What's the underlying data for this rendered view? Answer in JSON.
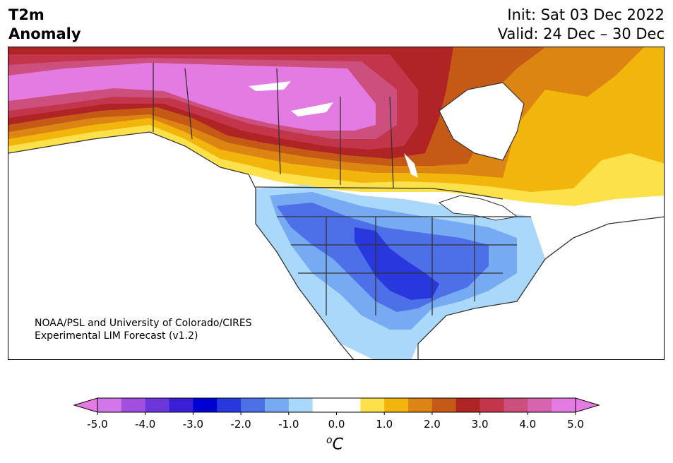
{
  "header": {
    "variable_line1": "T2m",
    "variable_line2": "Anomaly",
    "init_line": "Init: Sat 03 Dec 2022",
    "valid_line": "Valid: 24 Dec – 30 Dec"
  },
  "credit": {
    "line1": "NOAA/PSL and University of Colorado/CIRES",
    "line2": "Experimental LIM Forecast (v1.2)"
  },
  "colorbar": {
    "unit_base": "C",
    "unit_sup": "o",
    "ticks": [
      "-5.0",
      "-4.0",
      "-3.0",
      "-2.0",
      "-1.0",
      "0.0",
      "1.0",
      "2.0",
      "3.0",
      "4.0",
      "5.0"
    ],
    "under_color": "#e47be3",
    "over_color": "#e47be3",
    "colors": [
      "#d276ea",
      "#a24fe0",
      "#6b36dc",
      "#3b1fd6",
      "#0000d2",
      "#2838dc",
      "#4d70e8",
      "#76aaf2",
      "#a9d8fb",
      "#ffffff",
      "#ffffff",
      "#fde14a",
      "#f2b50c",
      "#dc8512",
      "#c55a17",
      "#b12426",
      "#c2354a",
      "#cd4f7e",
      "#d863ae",
      "#e47be3"
    ]
  },
  "map": {
    "ocean_color": "#ffffff",
    "border_color": "#333333"
  }
}
